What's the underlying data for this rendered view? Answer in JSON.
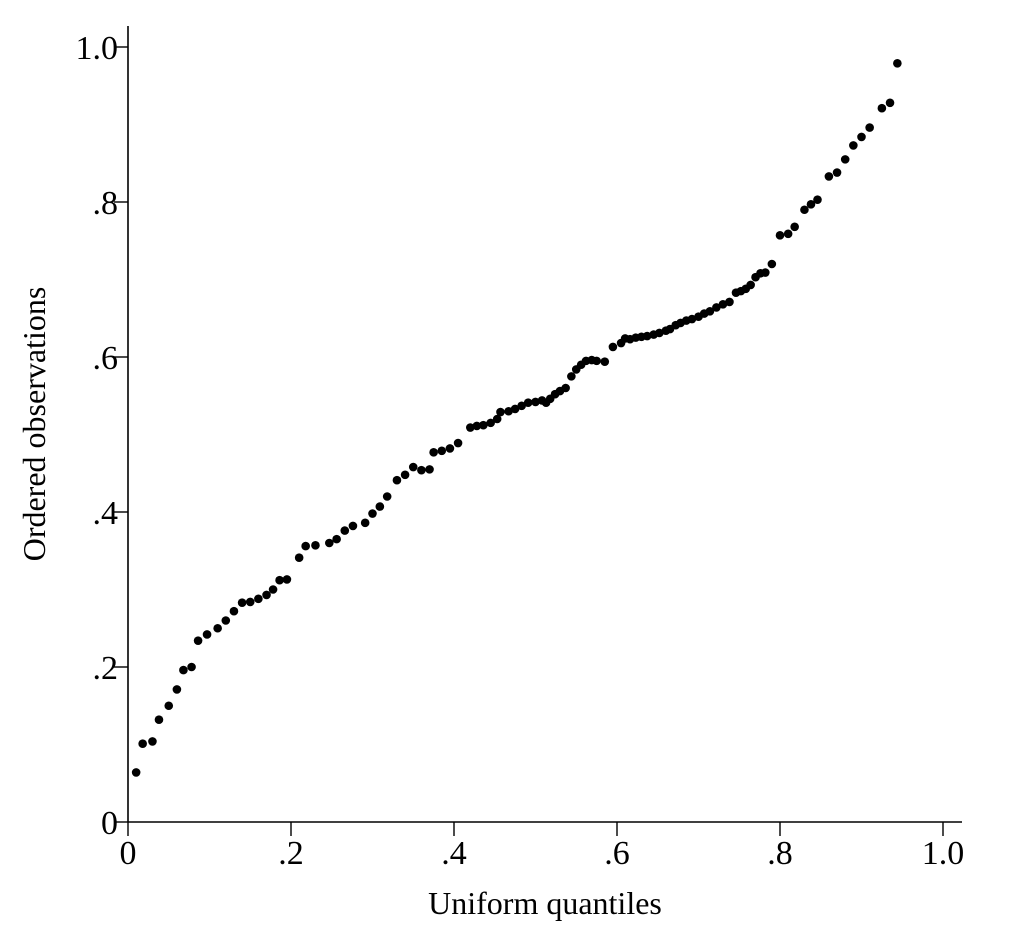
{
  "chart_data": {
    "type": "scatter",
    "xlabel": "Uniform quantiles",
    "ylabel": "Ordered observations",
    "xlim": [
      0,
      1.02
    ],
    "ylim": [
      0,
      1.0
    ],
    "grid": false,
    "x_ticks": [
      {
        "value": 0,
        "label": "0"
      },
      {
        "value": 0.2,
        "label": ".2"
      },
      {
        "value": 0.4,
        "label": ".4"
      },
      {
        "value": 0.6,
        "label": ".6"
      },
      {
        "value": 0.8,
        "label": ".8"
      },
      {
        "value": 1.0,
        "label": "1.0"
      }
    ],
    "y_ticks": [
      {
        "value": 0,
        "label": "0"
      },
      {
        "value": 0.2,
        "label": ".2"
      },
      {
        "value": 0.4,
        "label": ".4"
      },
      {
        "value": 0.6,
        "label": ".6"
      },
      {
        "value": 0.8,
        "label": ".8"
      },
      {
        "value": 1.0,
        "label": "1.0"
      }
    ],
    "points": [
      [
        0.01,
        0.064
      ],
      [
        0.018,
        0.101
      ],
      [
        0.03,
        0.104
      ],
      [
        0.038,
        0.132
      ],
      [
        0.05,
        0.15
      ],
      [
        0.06,
        0.171
      ],
      [
        0.068,
        0.196
      ],
      [
        0.078,
        0.2
      ],
      [
        0.086,
        0.234
      ],
      [
        0.097,
        0.242
      ],
      [
        0.11,
        0.25
      ],
      [
        0.12,
        0.26
      ],
      [
        0.13,
        0.272
      ],
      [
        0.14,
        0.283
      ],
      [
        0.15,
        0.284
      ],
      [
        0.16,
        0.288
      ],
      [
        0.17,
        0.293
      ],
      [
        0.178,
        0.3
      ],
      [
        0.186,
        0.312
      ],
      [
        0.195,
        0.313
      ],
      [
        0.21,
        0.341
      ],
      [
        0.218,
        0.356
      ],
      [
        0.23,
        0.357
      ],
      [
        0.247,
        0.36
      ],
      [
        0.256,
        0.365
      ],
      [
        0.266,
        0.376
      ],
      [
        0.276,
        0.382
      ],
      [
        0.291,
        0.386
      ],
      [
        0.3,
        0.398
      ],
      [
        0.309,
        0.407
      ],
      [
        0.318,
        0.42
      ],
      [
        0.33,
        0.441
      ],
      [
        0.34,
        0.448
      ],
      [
        0.35,
        0.458
      ],
      [
        0.36,
        0.454
      ],
      [
        0.37,
        0.455
      ],
      [
        0.375,
        0.477
      ],
      [
        0.385,
        0.479
      ],
      [
        0.395,
        0.482
      ],
      [
        0.405,
        0.489
      ],
      [
        0.42,
        0.509
      ],
      [
        0.428,
        0.511
      ],
      [
        0.436,
        0.512
      ],
      [
        0.445,
        0.515
      ],
      [
        0.453,
        0.52
      ],
      [
        0.457,
        0.529
      ],
      [
        0.467,
        0.53
      ],
      [
        0.475,
        0.533
      ],
      [
        0.483,
        0.537
      ],
      [
        0.491,
        0.541
      ],
      [
        0.5,
        0.542
      ],
      [
        0.508,
        0.544
      ],
      [
        0.513,
        0.541
      ],
      [
        0.518,
        0.546
      ],
      [
        0.524,
        0.552
      ],
      [
        0.53,
        0.556
      ],
      [
        0.537,
        0.56
      ],
      [
        0.544,
        0.575
      ],
      [
        0.55,
        0.584
      ],
      [
        0.556,
        0.59
      ],
      [
        0.562,
        0.595
      ],
      [
        0.569,
        0.596
      ],
      [
        0.575,
        0.595
      ],
      [
        0.585,
        0.594
      ],
      [
        0.595,
        0.613
      ],
      [
        0.605,
        0.618
      ],
      [
        0.61,
        0.624
      ],
      [
        0.616,
        0.623
      ],
      [
        0.623,
        0.625
      ],
      [
        0.63,
        0.626
      ],
      [
        0.637,
        0.627
      ],
      [
        0.645,
        0.629
      ],
      [
        0.652,
        0.631
      ],
      [
        0.66,
        0.634
      ],
      [
        0.665,
        0.636
      ],
      [
        0.672,
        0.641
      ],
      [
        0.678,
        0.644
      ],
      [
        0.685,
        0.647
      ],
      [
        0.692,
        0.649
      ],
      [
        0.7,
        0.652
      ],
      [
        0.707,
        0.656
      ],
      [
        0.714,
        0.659
      ],
      [
        0.722,
        0.664
      ],
      [
        0.73,
        0.668
      ],
      [
        0.738,
        0.671
      ],
      [
        0.746,
        0.683
      ],
      [
        0.752,
        0.685
      ],
      [
        0.758,
        0.688
      ],
      [
        0.764,
        0.693
      ],
      [
        0.77,
        0.703
      ],
      [
        0.776,
        0.708
      ],
      [
        0.782,
        0.709
      ],
      [
        0.79,
        0.72
      ],
      [
        0.8,
        0.757
      ],
      [
        0.81,
        0.759
      ],
      [
        0.818,
        0.768
      ],
      [
        0.83,
        0.79
      ],
      [
        0.838,
        0.797
      ],
      [
        0.846,
        0.803
      ],
      [
        0.86,
        0.833
      ],
      [
        0.87,
        0.838
      ],
      [
        0.88,
        0.855
      ],
      [
        0.89,
        0.873
      ],
      [
        0.9,
        0.884
      ],
      [
        0.91,
        0.896
      ],
      [
        0.925,
        0.921
      ],
      [
        0.935,
        0.928
      ],
      [
        0.944,
        0.979
      ]
    ]
  }
}
